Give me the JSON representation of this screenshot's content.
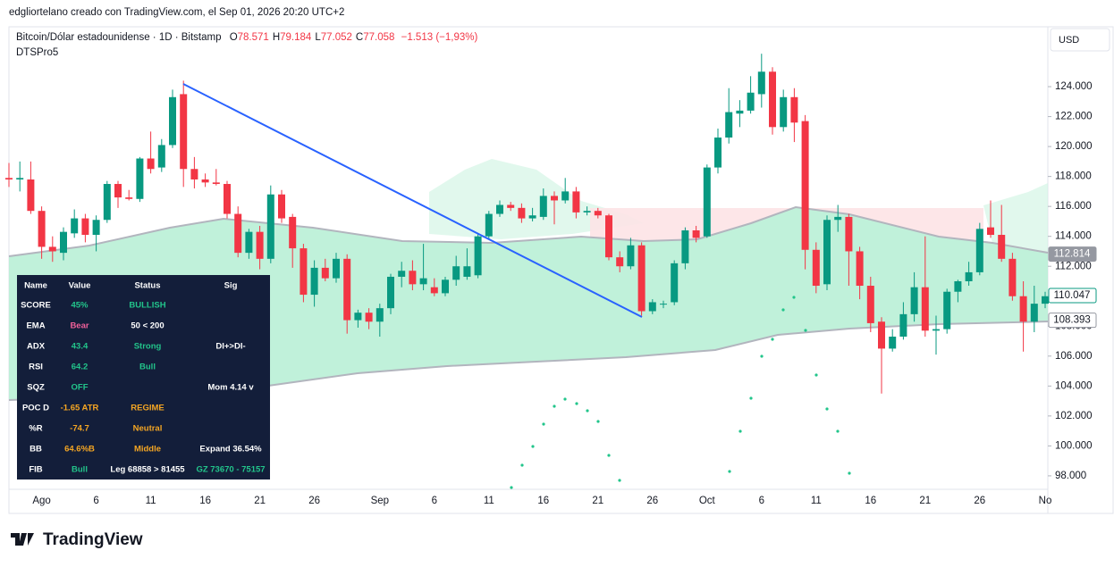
{
  "header": {
    "credit": "edgliortelano creado con TradingView.com, el Sep 01, 2026 20:20 UTC+2",
    "symbol": "Bitcoin/Dólar estadounidense · 1D · Bitstamp",
    "ohlc": [
      {
        "key": "O",
        "value": "78.571"
      },
      {
        "key": "H",
        "value": "79.184"
      },
      {
        "key": "L",
        "value": "77.052"
      },
      {
        "key": "C",
        "value": "77.058"
      }
    ],
    "change": "−1.513 (−1,93%)",
    "indicator": "DTSPro5",
    "currency": "USD"
  },
  "chart_data": {
    "type": "candlestick",
    "up_color": "#089981",
    "down_color": "#f23645",
    "categories": [
      null,
      null,
      null,
      "Ago",
      null,
      null,
      null,
      null,
      "6",
      null,
      null,
      null,
      null,
      "11",
      null,
      null,
      null,
      null,
      "16",
      null,
      null,
      null,
      null,
      "21",
      null,
      null,
      null,
      null,
      "26",
      null,
      null,
      null,
      null,
      null,
      "Sep",
      null,
      null,
      null,
      null,
      "6",
      null,
      null,
      null,
      null,
      "11",
      null,
      null,
      null,
      null,
      "16",
      null,
      null,
      null,
      null,
      "21",
      null,
      null,
      null,
      null,
      "26",
      null,
      null,
      null,
      null,
      "Oct",
      null,
      null,
      null,
      null,
      "6",
      null,
      null,
      null,
      null,
      "11",
      null,
      null,
      null,
      null,
      "16",
      null,
      null,
      null,
      null,
      "21",
      null,
      null,
      null,
      null,
      "26",
      null,
      null,
      null,
      null,
      null,
      "No"
    ],
    "open": [
      117.9,
      117.8,
      117.8,
      115.7,
      113.3,
      112.9,
      114.2,
      115.2,
      114.1,
      115.1,
      117.5,
      116.6,
      116.5,
      119.2,
      118.6,
      120.1,
      123.5,
      118.5,
      117.8,
      117.6,
      117.5,
      115.5,
      112.9,
      114.3,
      112.5,
      116.8,
      115.3,
      113.2,
      110.1,
      111.9,
      111.2,
      112.5,
      108.4,
      108.9,
      108.3,
      109.2,
      111.3,
      111.7,
      110.8,
      110.6,
      110.2,
      111.1,
      111.3,
      111.4,
      114.0,
      115.5,
      116.1,
      115.9,
      115.2,
      115.3,
      116.7,
      116.4,
      117.0,
      115.6,
      115.7,
      115.4,
      112.6,
      112.0,
      113.4,
      109.0,
      109.5,
      109.6,
      112.2,
      114.4,
      114.0,
      118.6,
      120.6,
      122.2,
      122.4,
      123.5,
      125.0,
      121.3,
      123.3,
      121.7,
      113.1,
      110.8,
      115.1,
      115.3,
      113.0,
      110.7,
      108.3,
      106.5,
      107.3,
      108.8,
      110.6,
      107.7,
      107.8,
      110.3,
      111.0,
      111.6,
      114.6,
      114.1,
      112.5,
      110.0,
      108.3,
      109.5
    ],
    "high": [
      118.9,
      119.0,
      119.0,
      116.0,
      114.0,
      114.6,
      115.8,
      115.5,
      115.4,
      117.7,
      117.7,
      117.1,
      119.3,
      121.0,
      120.5,
      123.8,
      124.4,
      119.3,
      118.2,
      118.5,
      117.7,
      116.0,
      114.5,
      114.7,
      117.4,
      117.1,
      115.5,
      113.5,
      112.4,
      112.5,
      112.9,
      112.8,
      109.1,
      109.2,
      109.5,
      111.5,
      112.3,
      112.4,
      113.5,
      111.2,
      111.3,
      112.7,
      113.2,
      114.2,
      115.7,
      116.4,
      116.3,
      116.2,
      115.9,
      117.2,
      117.0,
      117.9,
      117.3,
      116.0,
      115.9,
      115.5,
      113.0,
      113.9,
      113.6,
      109.8,
      109.7,
      112.4,
      114.6,
      114.7,
      118.8,
      121.2,
      123.9,
      123.1,
      124.7,
      126.2,
      125.3,
      123.8,
      123.9,
      122.1,
      113.6,
      115.4,
      116.1,
      115.5,
      113.3,
      111.3,
      108.6,
      107.8,
      109.6,
      111.6,
      114.0,
      108.7,
      110.5,
      111.1,
      112.3,
      114.9,
      116.4,
      116.1,
      112.9,
      111.0,
      110.7,
      110.3
    ],
    "low": [
      117.3,
      117.0,
      115.5,
      112.5,
      112.3,
      112.4,
      113.9,
      113.6,
      113.0,
      114.9,
      115.9,
      116.4,
      116.3,
      118.2,
      118.3,
      119.9,
      117.3,
      117.2,
      117.3,
      117.4,
      115.2,
      112.6,
      112.5,
      111.8,
      112.2,
      114.9,
      111.9,
      109.6,
      109.3,
      111.0,
      110.9,
      107.5,
      107.9,
      107.8,
      107.3,
      108.8,
      110.6,
      110.4,
      110.4,
      110.0,
      110.0,
      110.7,
      111.1,
      111.2,
      113.8,
      115.3,
      115.7,
      114.9,
      115.0,
      115.1,
      114.8,
      116.2,
      115.2,
      115.4,
      115.2,
      112.4,
      111.6,
      111.8,
      108.7,
      108.8,
      109.2,
      109.4,
      111.8,
      113.6,
      113.9,
      118.2,
      120.2,
      121.3,
      122.2,
      122.6,
      120.8,
      121.0,
      120.3,
      111.8,
      110.2,
      110.4,
      114.3,
      110.7,
      109.8,
      107.6,
      103.5,
      106.3,
      107.1,
      108.3,
      107.3,
      106.1,
      107.5,
      109.6,
      110.7,
      111.4,
      113.9,
      112.3,
      109.7,
      106.3,
      107.6,
      109.2
    ],
    "close": [
      117.8,
      117.9,
      115.7,
      113.3,
      113.0,
      114.3,
      115.2,
      114.1,
      115.1,
      117.5,
      116.6,
      116.5,
      119.2,
      118.5,
      120.1,
      123.3,
      118.5,
      117.8,
      117.6,
      117.5,
      115.5,
      112.9,
      114.3,
      112.5,
      116.8,
      115.2,
      113.2,
      110.1,
      111.9,
      111.2,
      112.5,
      108.4,
      108.9,
      108.3,
      109.2,
      111.3,
      111.7,
      110.8,
      111.2,
      110.2,
      111.1,
      112.0,
      112.0,
      114.0,
      115.5,
      116.1,
      115.9,
      115.2,
      115.4,
      116.7,
      116.4,
      117.0,
      115.6,
      115.7,
      115.4,
      112.6,
      112.0,
      113.4,
      109.0,
      109.6,
      109.5,
      112.2,
      114.4,
      113.9,
      118.6,
      120.6,
      122.3,
      122.4,
      123.6,
      125.0,
      121.3,
      123.3,
      121.6,
      113.1,
      110.7,
      115.1,
      115.3,
      113.0,
      110.7,
      108.2,
      106.5,
      107.3,
      108.8,
      110.6,
      107.7,
      107.8,
      110.3,
      111.0,
      111.6,
      114.5,
      114.1,
      112.5,
      110.0,
      108.3,
      109.5,
      110.0
    ],
    "ylim": [
      97.1,
      128
    ],
    "yticks": [
      {
        "value": 98,
        "label": "98.000"
      },
      {
        "value": 100,
        "label": "100.000"
      },
      {
        "value": 102,
        "label": "102.000"
      },
      {
        "value": 104,
        "label": "104.000"
      },
      {
        "value": 106,
        "label": "106.000"
      },
      {
        "value": 108,
        "label": "108.000"
      },
      {
        "value": 110,
        "label": "110.000"
      },
      {
        "value": 112,
        "label": "112.000"
      },
      {
        "value": 114,
        "label": "114.000"
      },
      {
        "value": 116,
        "label": "116.000"
      },
      {
        "value": 118,
        "label": "118.000"
      },
      {
        "value": 120,
        "label": "120.000"
      },
      {
        "value": 122,
        "label": "122.000"
      },
      {
        "value": 124,
        "label": "124.000"
      }
    ],
    "price_labels": [
      {
        "value": 112.814,
        "color": "#9598a1",
        "style": "fill"
      },
      {
        "value": 110.047,
        "color": "#089981",
        "style": "outline"
      },
      {
        "value": 108.393,
        "color": "#9598a1",
        "style": "outline"
      }
    ]
  },
  "indicator_table": {
    "columns": [
      "Name",
      "Value",
      "Status",
      "Sig"
    ],
    "rows": [
      {
        "name": "SCORE",
        "value": "45%",
        "value_color": "#22c58b",
        "status": "BULLISH",
        "status_color": "#22c58b"
      },
      {
        "name": "EMA",
        "value": "Bear",
        "value_color": "#f0609a",
        "status": "50 < 200",
        "status_color": "#ffffff"
      },
      {
        "name": "ADX",
        "value": "43.4",
        "value_color": "#22c58b",
        "status": "Strong",
        "status_color": "#22c58b",
        "sig": "DI+>DI-",
        "sig_color": "#ffffff"
      },
      {
        "name": "RSI",
        "value": "64.2",
        "value_color": "#22c58b",
        "status": "Bull",
        "status_color": "#22c58b"
      },
      {
        "name": "SQZ",
        "value": "OFF",
        "value_color": "#22c58b",
        "sig": "Mom 4.14 v",
        "sig_color": "#ffffff"
      },
      {
        "name": "POC D",
        "value": "-1.65 ATR",
        "value_color": "#f5a623",
        "status": "REGIME",
        "status_color": "#f5a623"
      },
      {
        "name": "%R",
        "value": "-74.7",
        "value_color": "#f5a623",
        "status": "Neutral",
        "status_color": "#f5a623"
      },
      {
        "name": "BB",
        "value": "64.6%B",
        "value_color": "#f5a623",
        "status": "Middle",
        "status_color": "#f5a623",
        "sig": "Expand 36.54%",
        "sig_color": "#ffffff"
      },
      {
        "name": "FIB",
        "value": "Bull",
        "value_color": "#22c58b",
        "status": "Leg 68858 > 81455",
        "status_color": "#ffffff",
        "sig": "GZ 73670 - 75157",
        "sig_color": "#22c58b"
      }
    ]
  },
  "footer": {
    "brand": "TradingView"
  }
}
